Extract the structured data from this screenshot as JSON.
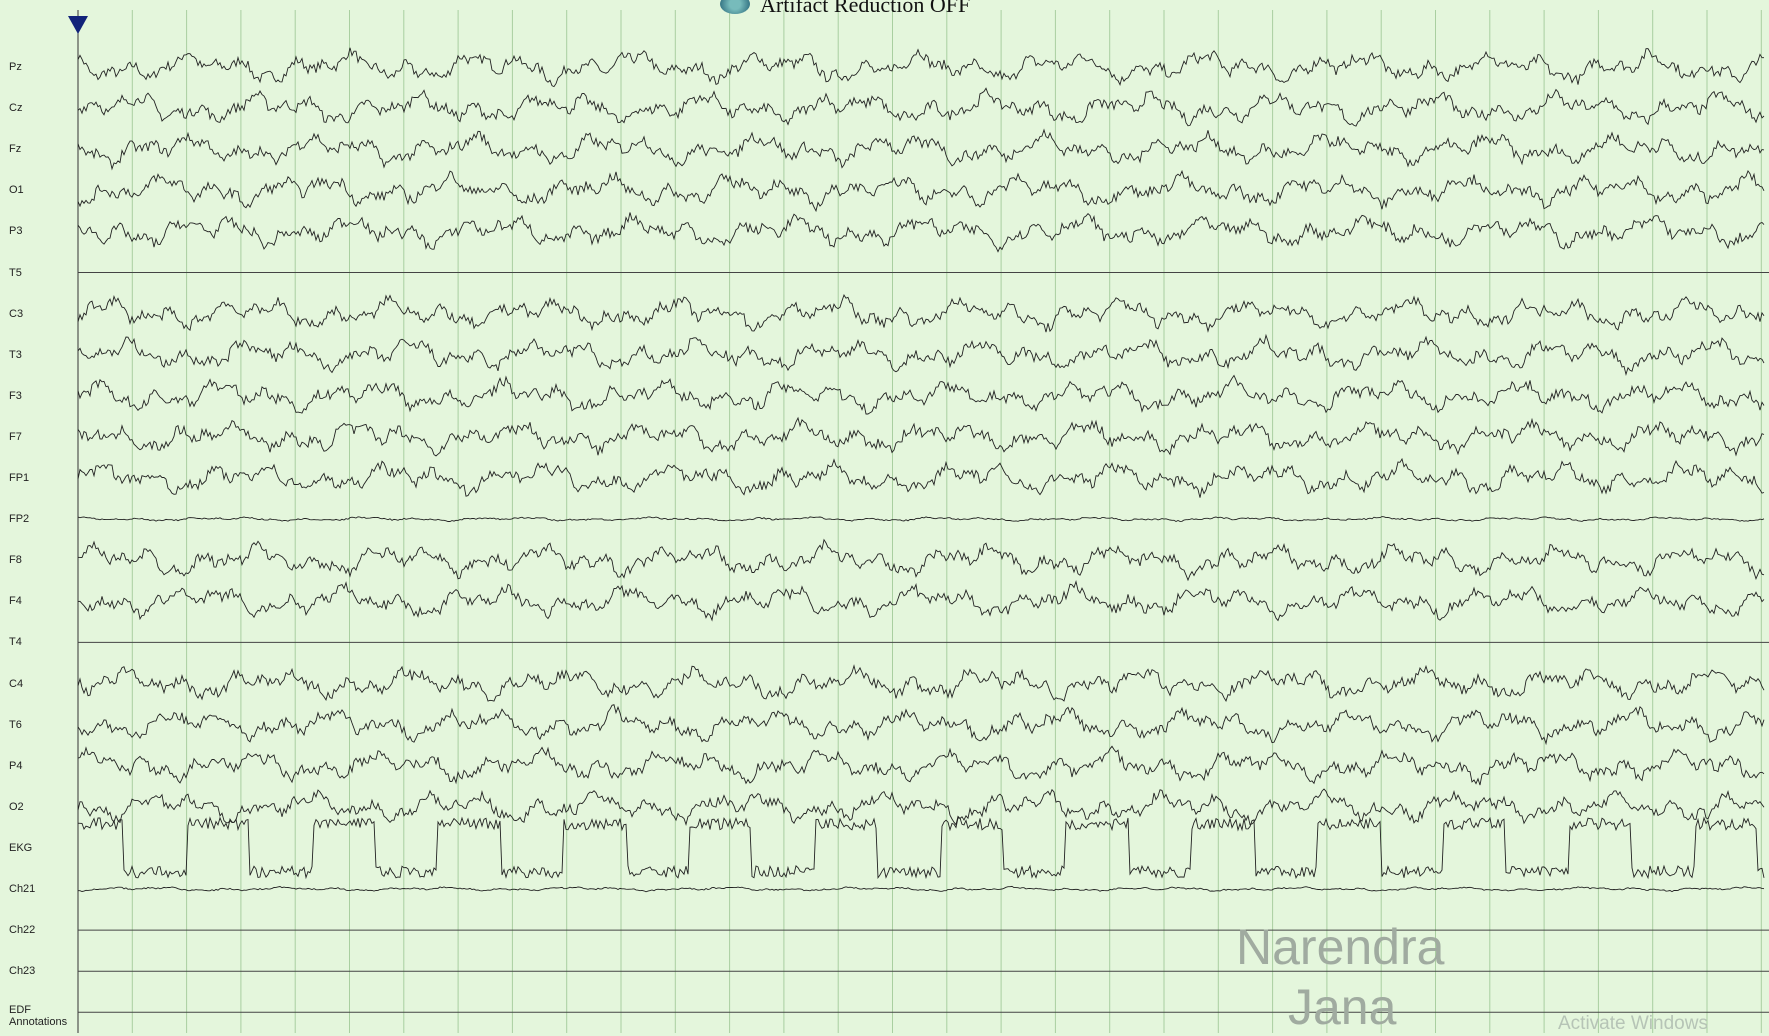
{
  "header": {
    "title": "Artifact Reduction OFF"
  },
  "channels": [
    "Pz",
    "Cz",
    "Fz",
    "O1",
    "P3",
    "T5",
    "C3",
    "T3",
    "F3",
    "F7",
    "FP1",
    "FP2",
    "F8",
    "F4",
    "T4",
    "C4",
    "T6",
    "P4",
    "O2",
    "EKG",
    "Ch21",
    "Ch22",
    "Ch23",
    "EDF Annotations"
  ],
  "watermark": {
    "line1": "Narendra",
    "line2": "Jana"
  },
  "system_notice": "Activate Windows"
}
